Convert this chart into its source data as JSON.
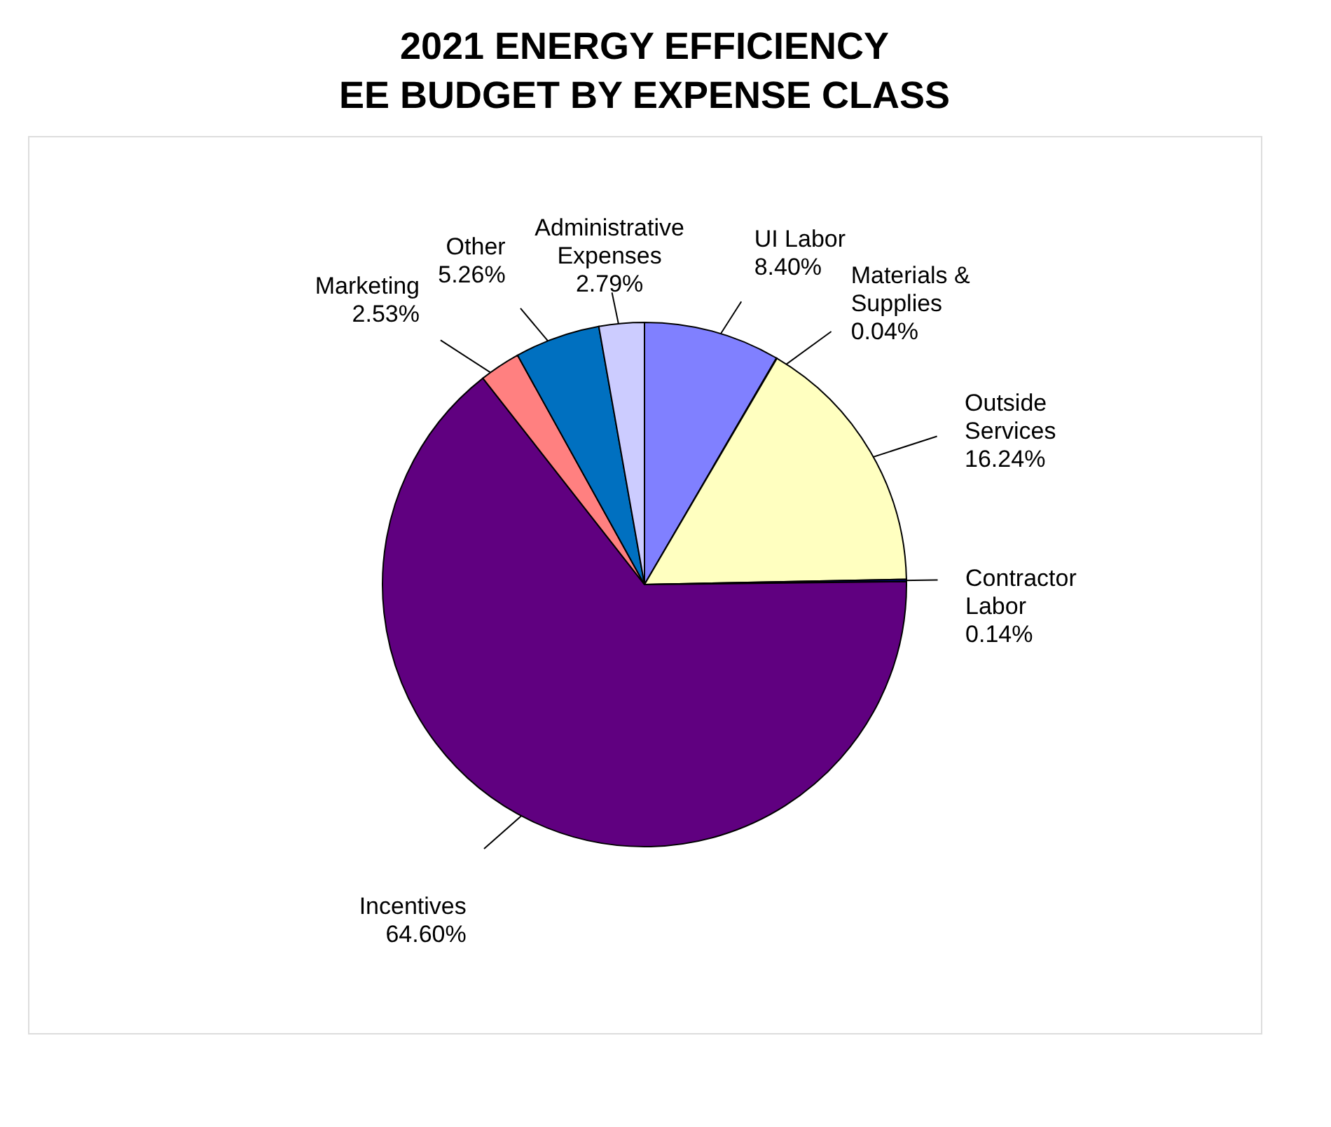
{
  "chart_data": {
    "type": "pie",
    "title": "2021 ENERGY EFFICIENCY",
    "subtitle": "EE BUDGET BY EXPENSE CLASS",
    "categories": [
      "UI Labor",
      "Materials & Supplies",
      "Outside Services",
      "Contractor Labor",
      "Incentives",
      "Marketing",
      "Other",
      "Administrative Expenses"
    ],
    "values": [
      8.4,
      0.04,
      16.24,
      0.14,
      64.6,
      2.53,
      5.26,
      2.79
    ],
    "colors": [
      "#8080ff",
      "#ccffff",
      "#ffffc0",
      "#000080",
      "#600080",
      "#ff8080",
      "#0070c0",
      "#ccccff"
    ],
    "value_labels": [
      "8.40%",
      "0.04%",
      "16.24%",
      "0.14%",
      "64.60%",
      "2.53%",
      "5.26%",
      "2.79%"
    ],
    "legend": false
  }
}
